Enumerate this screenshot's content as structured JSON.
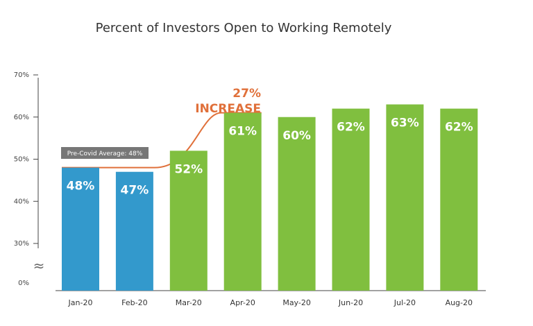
{
  "chart_data": {
    "type": "bar",
    "title": "Percent of Investors Open to Working Remotely",
    "categories": [
      "Jan-20",
      "Feb-20",
      "Mar-20",
      "Apr-20",
      "May-20",
      "Jun-20",
      "Jul-20",
      "Aug-20"
    ],
    "values": [
      48,
      47,
      52,
      61,
      60,
      62,
      63,
      62
    ],
    "data_labels": [
      "48%",
      "47%",
      "52%",
      "61%",
      "60%",
      "62%",
      "63%",
      "62%"
    ],
    "y_ticks": [
      "0%",
      "30%",
      "40%",
      "50%",
      "60%",
      "70%"
    ],
    "y_tick_values": [
      0,
      30,
      40,
      50,
      60,
      70
    ],
    "axis_break": "≈",
    "ylim": [
      0,
      70
    ],
    "bar_colors": [
      "#3399cc",
      "#3399cc",
      "#80bf3f",
      "#80bf3f",
      "#80bf3f",
      "#80bf3f",
      "#80bf3f",
      "#80bf3f"
    ],
    "grid": false,
    "annotations": {
      "reference_label": "Pre-Covid Average: 48%",
      "reference_value": 48,
      "increase_line1": "27%",
      "increase_line2": "INCREASE",
      "increase_color": "#e0703a"
    }
  }
}
